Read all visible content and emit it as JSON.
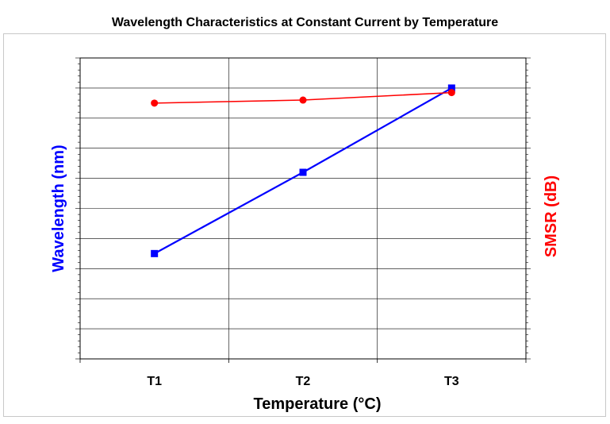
{
  "chart_data": {
    "type": "line",
    "title": "Wavelength Characteristics at Constant Current by Temperature",
    "xlabel": "Temperature (°C)",
    "ylabel_left": "Wavelength (nm)",
    "ylabel_right": "SMSR (dB)",
    "categories": [
      "T1",
      "T2",
      "T3"
    ],
    "ylim_left": [
      0,
      10
    ],
    "ylim_right": [
      0,
      10
    ],
    "grid": true,
    "series": [
      {
        "name": "",
        "axis": "left",
        "color": "#0000ff",
        "marker": "square",
        "values": [
          3.5,
          6.2,
          9.0
        ]
      },
      {
        "name": "",
        "axis": "right",
        "color": "#ff0000",
        "marker": "circle",
        "values": [
          8.5,
          8.6,
          8.85
        ]
      }
    ]
  }
}
